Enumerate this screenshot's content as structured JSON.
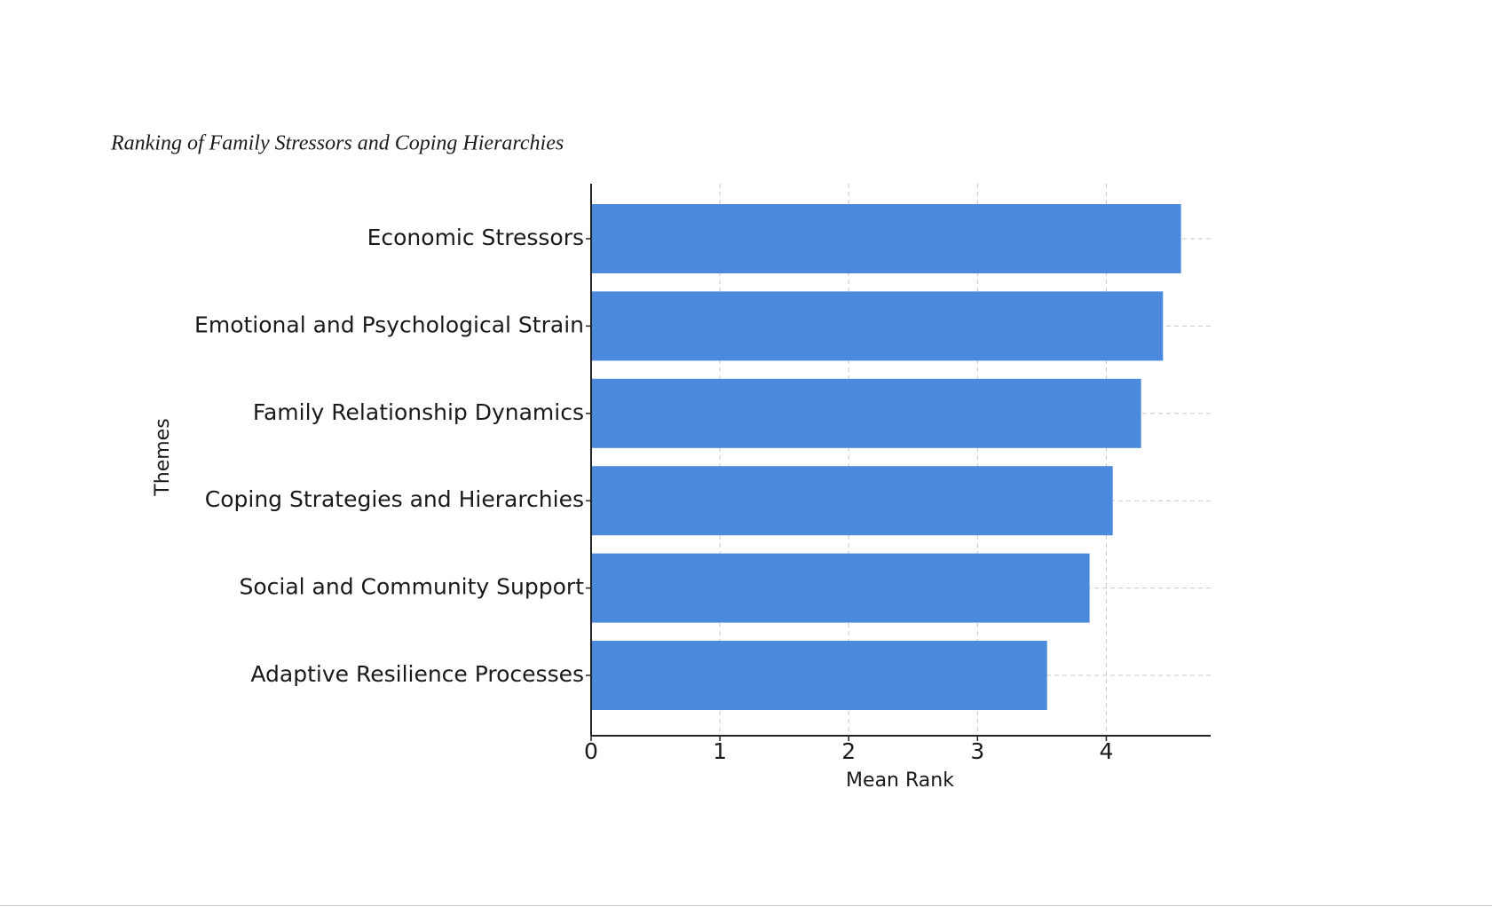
{
  "chart_data": {
    "type": "barh",
    "title": "Ranking of Family Stressors and Coping Hierarchies",
    "x_label": "Mean Rank",
    "y_label": "Themes",
    "categories": [
      "Economic Stressors",
      "Emotional and Psychological Strain",
      "Family Relationship Dynamics",
      "Coping Strategies and Hierarchies",
      "Social and Community Support",
      "Adaptive Resilience Processes"
    ],
    "values": [
      4.58,
      4.44,
      4.27,
      4.05,
      3.87,
      3.54
    ],
    "color": "#4a89dc",
    "xlim": [
      0,
      4.81
    ],
    "xticks": [
      0,
      1,
      2,
      3,
      4
    ],
    "grid": true
  }
}
